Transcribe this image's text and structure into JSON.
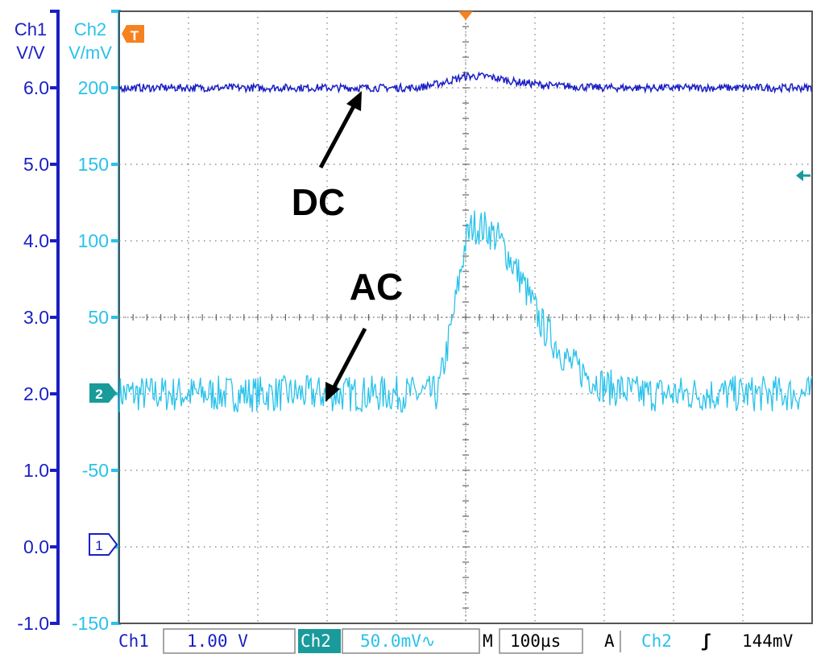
{
  "chart_data": {
    "type": "line",
    "time_per_div": "100µs",
    "grid": true,
    "divisions": {
      "x": 10,
      "y": 8
    },
    "trigger_x_div": 5,
    "series": [
      {
        "name": "Ch1",
        "coupling": "DC",
        "color": "#1a1fc4",
        "scale_per_div": "1.00 V",
        "ylim": [
          -1.0,
          7.0
        ],
        "x_div": [
          0,
          4.3,
          4.6,
          5.0,
          5.3,
          5.7,
          6.2,
          7.0,
          10
        ],
        "y": [
          6.0,
          6.0,
          6.05,
          6.15,
          6.15,
          6.08,
          6.03,
          6.0,
          6.0
        ],
        "noise": 0.05
      },
      {
        "name": "Ch2",
        "coupling": "AC",
        "color": "#29c2ea",
        "scale_per_div": "50.0mV",
        "ylim": [
          -150,
          250
        ],
        "x_div": [
          0,
          4.6,
          4.8,
          5.0,
          5.1,
          5.3,
          5.5,
          5.8,
          6.1,
          6.5,
          7.0,
          7.5,
          8.0,
          10
        ],
        "y": [
          0,
          0,
          45,
          100,
          110,
          108,
          100,
          75,
          45,
          20,
          5,
          0,
          0,
          0
        ],
        "noise": 12
      }
    ],
    "left_axis": {
      "name": "Ch1",
      "unit": "V/V",
      "ticks": [
        "6.0",
        "5.0",
        "4.0",
        "3.0",
        "2.0",
        "1.0",
        "0.0",
        "-1.0"
      ]
    },
    "right_axis": {
      "name": "Ch2",
      "unit": "V/mV",
      "ticks": [
        "200",
        "150",
        "100",
        "50",
        "",
        "-50",
        "",
        "-150"
      ]
    },
    "annotations": [
      "DC",
      "AC"
    ],
    "markers": {
      "trigger": "T",
      "ch1_ground": "1",
      "ch2_ground": "2"
    }
  },
  "status_bar": {
    "ch1_label": "Ch1",
    "ch1_scale": "1.00 V",
    "ch2_label": "Ch2",
    "ch2_scale": "50.0mV∿",
    "m_label": "M",
    "timebase": "100µs",
    "a_label": "A",
    "trig_source": "Ch2",
    "trig_slope": "ʃ",
    "trig_level": "144mV"
  },
  "colors": {
    "ch1": "#1a1fc4",
    "ch2": "#29c2ea",
    "trigger_marker": "#f5821f",
    "ch2_marker": "#1a9a9a",
    "grid": "#7a7a7a",
    "frame": "#555555"
  }
}
